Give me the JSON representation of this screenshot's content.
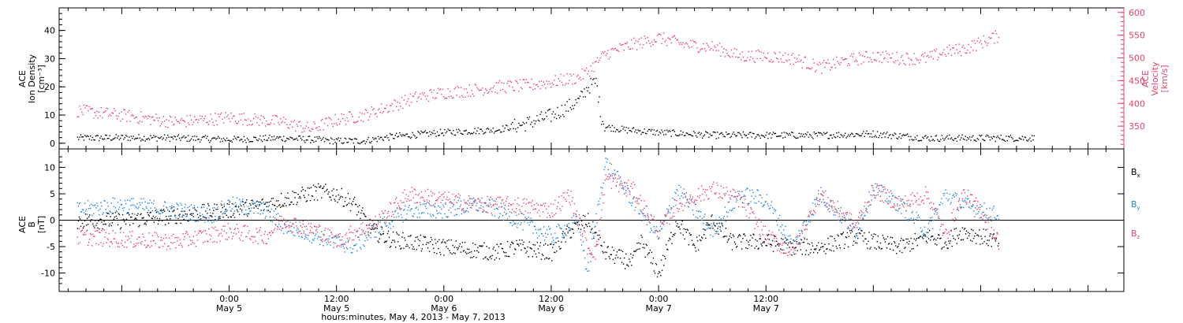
{
  "colors": {
    "black": "#000000",
    "red": "#e8416b",
    "blue": "#1f85e0"
  },
  "chart_data": [
    {
      "type": "scatter",
      "panel": "top",
      "ylabel_left": [
        "ACE",
        "Ion Density",
        "[cm⁻³]"
      ],
      "ylabel_right": [
        "ACE",
        "Velocity",
        "[km/s]"
      ],
      "ylim_left": [
        -2,
        48
      ],
      "ylim_right": [
        300,
        610
      ],
      "yticks_left": [
        "0",
        "10",
        "20",
        "30",
        "40"
      ],
      "yticks_right": [
        "350",
        "400",
        "450",
        "500",
        "550",
        "600"
      ],
      "series": [
        {
          "axis": "left",
          "color": "black",
          "x": [
            -17,
            -10,
            -6,
            0,
            6,
            12,
            15,
            18,
            24,
            30,
            33,
            36,
            39,
            40,
            41,
            41.5,
            42,
            44,
            48,
            54,
            60,
            66,
            72,
            78,
            83,
            84,
            90
          ],
          "y": [
            2,
            2.2,
            2,
            1.5,
            2,
            1,
            1,
            2.5,
            4,
            5,
            7,
            10,
            15,
            20,
            22,
            10,
            6,
            5,
            4,
            3,
            3,
            3,
            3.5,
            2,
            2,
            2,
            2
          ]
        },
        {
          "axis": "right",
          "color": "red",
          "x": [
            -17,
            -12,
            -6,
            0,
            6,
            9,
            12,
            15,
            18,
            21,
            24,
            27,
            30,
            33,
            36,
            39,
            40,
            41,
            42,
            45,
            48,
            51,
            54,
            57,
            60,
            63,
            66,
            69,
            72,
            75,
            78,
            80,
            82,
            84,
            86
          ],
          "y": [
            385,
            375,
            360,
            370,
            360,
            345,
            365,
            375,
            395,
            415,
            425,
            430,
            437,
            440,
            448,
            458,
            470,
            490,
            510,
            530,
            545,
            530,
            525,
            505,
            505,
            500,
            480,
            495,
            505,
            500,
            500,
            515,
            520,
            535,
            550
          ]
        }
      ]
    },
    {
      "type": "scatter",
      "panel": "bottom",
      "ylabel_left": [
        "ACE",
        "B",
        "[nT]"
      ],
      "ylim": [
        -13.5,
        13.5
      ],
      "yticks": [
        "-10",
        "-5",
        "0",
        "5",
        "10"
      ],
      "series": [
        {
          "name": "Bx",
          "color": "black",
          "x": [
            -17,
            -12,
            -6,
            0,
            4,
            6,
            10,
            12,
            14,
            16,
            18,
            20,
            24,
            30,
            32,
            36,
            38,
            40,
            42,
            45,
            46,
            48,
            50,
            52,
            54,
            56,
            60,
            63,
            66,
            70,
            72,
            75,
            78,
            80,
            82,
            84,
            86
          ],
          "y": [
            0,
            0,
            1,
            2,
            3,
            4,
            5.5,
            5,
            3,
            -2,
            -3.5,
            -4,
            -5,
            -6,
            -5,
            -6,
            -2,
            0,
            -6,
            -8,
            -4,
            -10,
            0,
            -5,
            0,
            -4,
            -4,
            -5,
            -5,
            -3,
            -4,
            -5,
            -3,
            -4,
            -2,
            -3,
            -4
          ]
        },
        {
          "name": "By",
          "color": "blue",
          "x": [
            -17,
            -12,
            -6,
            -2,
            0,
            4,
            6,
            10,
            12,
            14,
            16,
            18,
            20,
            24,
            28,
            30,
            36,
            39,
            40,
            42,
            45,
            48,
            50,
            54,
            57,
            60,
            63,
            66,
            70,
            72,
            75,
            78,
            80,
            82,
            84,
            86
          ],
          "y": [
            2,
            3,
            2,
            1,
            3,
            2,
            -1,
            -3,
            -4,
            -5,
            -2,
            0,
            2,
            2,
            3,
            2,
            -3,
            0,
            -10,
            11,
            4,
            -3,
            6,
            -2,
            5,
            4,
            -5,
            5,
            -2,
            6,
            3,
            -2,
            5,
            3,
            2,
            1
          ]
        },
        {
          "name": "Bz",
          "color": "red",
          "x": [
            -17,
            -12,
            -6,
            0,
            4,
            6,
            10,
            12,
            14,
            16,
            18,
            20,
            24,
            28,
            32,
            36,
            38,
            40,
            41,
            42,
            45,
            48,
            50,
            54,
            57,
            60,
            63,
            66,
            70,
            72,
            75,
            78,
            80,
            82,
            84,
            86
          ],
          "y": [
            -3,
            -3.5,
            -4,
            -2,
            -3,
            0,
            -2,
            -4,
            -2,
            -1,
            2,
            5,
            4,
            3,
            3,
            2,
            5,
            -5,
            -6,
            8,
            6,
            -2,
            3,
            6,
            4,
            -3,
            -6,
            5,
            -1,
            6,
            3,
            5,
            -3,
            5,
            2,
            -4
          ]
        }
      ]
    }
  ],
  "legend": [
    {
      "base": "B",
      "sub": "x",
      "color": "black"
    },
    {
      "base": "B",
      "sub": "y",
      "color": "blue"
    },
    {
      "base": "B",
      "sub": "z",
      "color": "red"
    }
  ],
  "xaxis": {
    "xlim": [
      -19,
      100
    ],
    "ticks": [
      {
        "x": 0,
        "time": "0:00",
        "date": "May 5"
      },
      {
        "x": 12,
        "time": "12:00",
        "date": "May 5"
      },
      {
        "x": 24,
        "time": "0:00",
        "date": "May 6"
      },
      {
        "x": 36,
        "time": "12:00",
        "date": "May 6"
      },
      {
        "x": 48,
        "time": "0:00",
        "date": "May 7"
      },
      {
        "x": 60,
        "time": "12:00",
        "date": "May 7"
      }
    ],
    "label": "hours:minutes, May  4, 2013 - May  7, 2013"
  }
}
